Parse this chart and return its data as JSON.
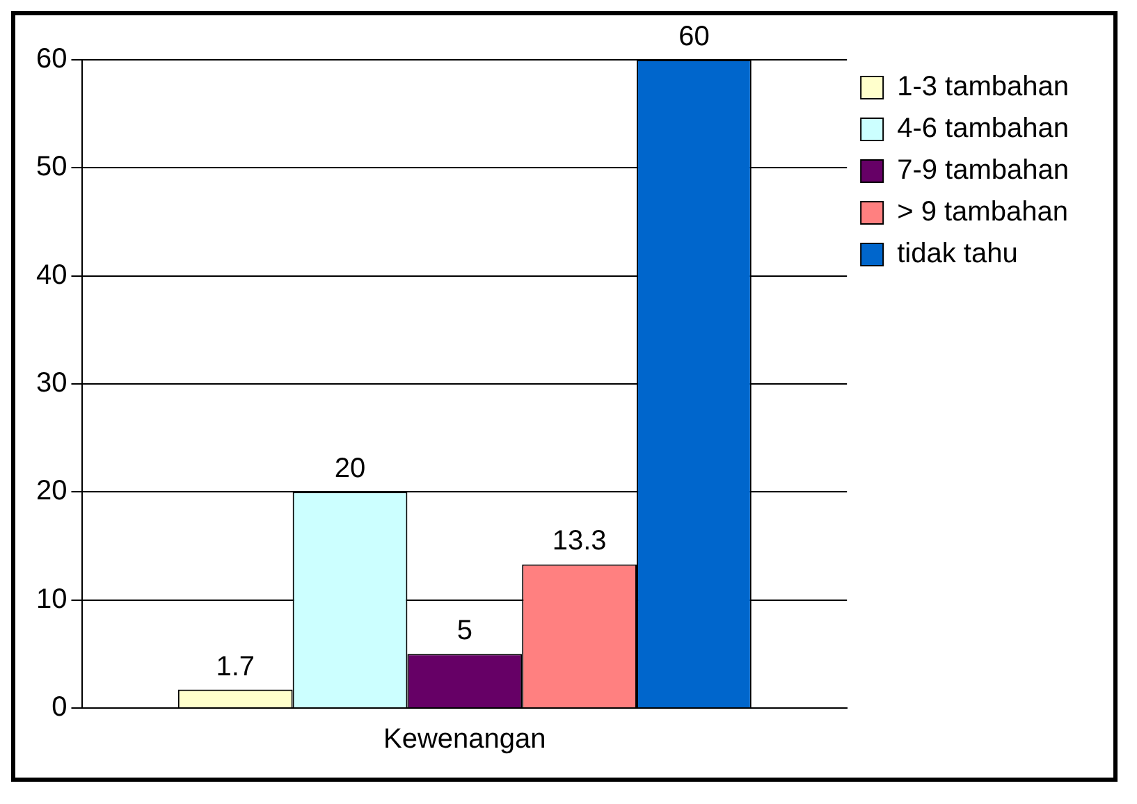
{
  "chart_data": {
    "type": "bar",
    "categories": [
      "Kewenangan"
    ],
    "series": [
      {
        "name": "1-3 tambahan",
        "color": "#ffffcc",
        "values": [
          1.7
        ]
      },
      {
        "name": "4-6 tambahan",
        "color": "#ccffff",
        "values": [
          20
        ]
      },
      {
        "name": "7-9 tambahan",
        "color": "#660066",
        "values": [
          5
        ]
      },
      {
        "name": "> 9 tambahan",
        "color": "#ff8080",
        "values": [
          13.3
        ]
      },
      {
        "name": "tidak tahu",
        "color": "#0066cc",
        "values": [
          60
        ]
      }
    ],
    "ylim": [
      0,
      60
    ],
    "yticks": [
      0,
      10,
      20,
      30,
      40,
      50,
      60
    ],
    "grid": "y",
    "legend": "right",
    "data_labels": true
  }
}
